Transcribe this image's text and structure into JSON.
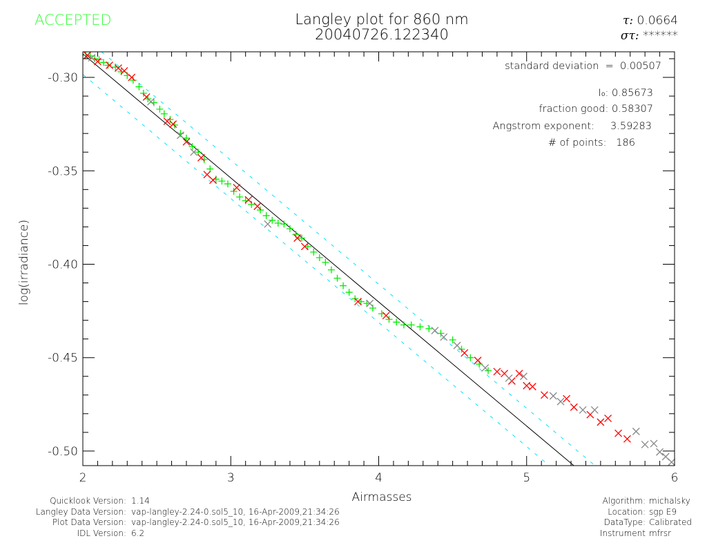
{
  "status": "ACCEPTED",
  "title": [
    "Langley plot for 860 nm",
    "20040726.122340"
  ],
  "tau": {
    "label": "τ:",
    "value": "0.0664"
  },
  "sigma_tau": {
    "label": "στ:",
    "value": "******"
  },
  "stats": {
    "std_dev": "standard deviation  =  0.00507",
    "i0": "I₀: 0.85673",
    "fraction_good": "fraction good: 0.58307",
    "angstrom": "Angstrom exponent:     3.59283",
    "n_points": "# of points:   186"
  },
  "footer_left": [
    {
      "label": "Quicklook Version:",
      "value": "1.14"
    },
    {
      "label": "Langley Data Version:",
      "value": "vap-langley-2.24-0.sol5_10, 16-Apr-2009,21:34:26"
    },
    {
      "label": "Plot Data Version:",
      "value": "vap-langley-2.24-0.sol5_10, 16-Apr-2009,21:34:26"
    },
    {
      "label": "IDL Version:",
      "value": "6.2"
    }
  ],
  "footer_right": [
    {
      "label": "Algorithm:",
      "value": "michalsky"
    },
    {
      "label": "Location:",
      "value": "sgp E9"
    },
    {
      "label": "DataType:",
      "value": "Calibrated"
    },
    {
      "label": "Instrument",
      "value": "mfrsr"
    }
  ],
  "chart_data": {
    "type": "scatter",
    "title": "Langley plot for 860 nm",
    "xlabel": "Airmasses",
    "ylabel": "log(irradiance)",
    "xlim": [
      2,
      6
    ],
    "ylim": [
      -0.5078,
      -0.2863
    ],
    "xticks": [
      "2",
      "3",
      "4",
      "5",
      "6"
    ],
    "yticks": [
      "-0.30",
      "-0.35",
      "-0.40",
      "-0.45",
      "-0.50"
    ],
    "ytick_values": [
      -0.3,
      -0.35,
      -0.4,
      -0.45,
      -0.5
    ],
    "grid": false,
    "colors": {
      "accepted": "#00ee00",
      "rejected": "#ff0000",
      "other": "#888888",
      "fit": "#000000",
      "bounds": "#00e5ff",
      "axes": "#000000"
    },
    "fit": {
      "intercept": -0.1546,
      "slope": -0.0664
    },
    "bounds_offset": [
      0.0095,
      -0.011
    ],
    "series": [
      {
        "marker": "plus",
        "color": "#00ee00",
        "points": [
          [
            2.02,
            -0.2875
          ],
          [
            2.05,
            -0.2885
          ],
          [
            2.08,
            -0.29
          ],
          [
            2.11,
            -0.2905
          ],
          [
            2.14,
            -0.292
          ],
          [
            2.17,
            -0.2935
          ],
          [
            2.22,
            -0.2945
          ],
          [
            2.26,
            -0.297
          ],
          [
            2.3,
            -0.299
          ],
          [
            2.34,
            -0.3015
          ],
          [
            2.38,
            -0.305
          ],
          [
            2.41,
            -0.3085
          ],
          [
            2.44,
            -0.3115
          ],
          [
            2.48,
            -0.3135
          ],
          [
            2.52,
            -0.317
          ],
          [
            2.55,
            -0.3195
          ],
          [
            2.59,
            -0.3225
          ],
          [
            2.62,
            -0.3255
          ],
          [
            2.66,
            -0.33
          ],
          [
            2.7,
            -0.3325
          ],
          [
            2.74,
            -0.337
          ],
          [
            2.78,
            -0.34
          ],
          [
            2.82,
            -0.344
          ],
          [
            2.86,
            -0.349
          ],
          [
            2.9,
            -0.3545
          ],
          [
            2.94,
            -0.3555
          ],
          [
            2.98,
            -0.357
          ],
          [
            3.02,
            -0.361
          ],
          [
            3.06,
            -0.364
          ],
          [
            3.1,
            -0.366
          ],
          [
            3.14,
            -0.368
          ],
          [
            3.2,
            -0.371
          ],
          [
            3.24,
            -0.374
          ],
          [
            3.28,
            -0.3765
          ],
          [
            3.32,
            -0.378
          ],
          [
            3.36,
            -0.3785
          ],
          [
            3.4,
            -0.381
          ],
          [
            3.44,
            -0.384
          ],
          [
            3.48,
            -0.386
          ],
          [
            3.52,
            -0.3905
          ],
          [
            3.56,
            -0.3935
          ],
          [
            3.6,
            -0.3965
          ],
          [
            3.64,
            -0.399
          ],
          [
            3.68,
            -0.403
          ],
          [
            3.72,
            -0.4075
          ],
          [
            3.76,
            -0.4115
          ],
          [
            3.8,
            -0.415
          ],
          [
            3.84,
            -0.4185
          ],
          [
            3.88,
            -0.42
          ],
          [
            3.92,
            -0.421
          ],
          [
            3.96,
            -0.4235
          ],
          [
            4.02,
            -0.4265
          ],
          [
            4.07,
            -0.4295
          ],
          [
            4.12,
            -0.431
          ],
          [
            4.17,
            -0.4325
          ],
          [
            4.22,
            -0.4325
          ],
          [
            4.28,
            -0.4335
          ],
          [
            4.34,
            -0.4345
          ],
          [
            4.42,
            -0.437
          ],
          [
            4.5,
            -0.4405
          ],
          [
            4.56,
            -0.4455
          ],
          [
            4.62,
            -0.45
          ],
          [
            4.68,
            -0.4535
          ],
          [
            4.74,
            -0.457
          ]
        ]
      },
      {
        "marker": "x",
        "color": "#ff0000",
        "points": [
          [
            2.03,
            -0.288
          ],
          [
            2.1,
            -0.2915
          ],
          [
            2.18,
            -0.2935
          ],
          [
            2.24,
            -0.295
          ],
          [
            2.28,
            -0.2965
          ],
          [
            2.33,
            -0.3
          ],
          [
            2.43,
            -0.3105
          ],
          [
            2.57,
            -0.3235
          ],
          [
            2.61,
            -0.325
          ],
          [
            2.7,
            -0.3345
          ],
          [
            2.8,
            -0.343
          ],
          [
            2.84,
            -0.352
          ],
          [
            2.88,
            -0.355
          ],
          [
            3.04,
            -0.359
          ],
          [
            3.12,
            -0.3655
          ],
          [
            3.18,
            -0.369
          ],
          [
            3.45,
            -0.386
          ],
          [
            3.5,
            -0.3905
          ],
          [
            3.86,
            -0.42
          ],
          [
            4.05,
            -0.4275
          ],
          [
            4.58,
            -0.4475
          ],
          [
            4.67,
            -0.4515
          ],
          [
            4.8,
            -0.4575
          ],
          [
            4.85,
            -0.4585
          ],
          [
            4.9,
            -0.4625
          ],
          [
            4.95,
            -0.4585
          ],
          [
            5.0,
            -0.465
          ],
          [
            5.04,
            -0.4655
          ],
          [
            5.12,
            -0.47
          ],
          [
            5.27,
            -0.472
          ],
          [
            5.32,
            -0.4765
          ],
          [
            5.43,
            -0.4805
          ],
          [
            5.5,
            -0.4845
          ],
          [
            5.55,
            -0.4825
          ],
          [
            5.62,
            -0.4905
          ],
          [
            5.68,
            -0.4935
          ]
        ]
      },
      {
        "marker": "x",
        "color": "#888888",
        "points": [
          [
            2.06,
            -0.2895
          ],
          [
            2.46,
            -0.313
          ],
          [
            2.66,
            -0.331
          ],
          [
            2.75,
            -0.34
          ],
          [
            3.25,
            -0.3785
          ],
          [
            3.94,
            -0.421
          ],
          [
            4.38,
            -0.4355
          ],
          [
            4.44,
            -0.439
          ],
          [
            4.53,
            -0.4435
          ],
          [
            4.72,
            -0.4555
          ],
          [
            4.88,
            -0.461
          ],
          [
            4.98,
            -0.46
          ],
          [
            5.18,
            -0.4705
          ],
          [
            5.23,
            -0.4735
          ],
          [
            5.38,
            -0.478
          ],
          [
            5.46,
            -0.478
          ],
          [
            5.74,
            -0.4895
          ],
          [
            5.8,
            -0.4965
          ],
          [
            5.86,
            -0.496
          ],
          [
            5.9,
            -0.5005
          ],
          [
            5.94,
            -0.503
          ],
          [
            5.98,
            -0.506
          ]
        ]
      }
    ]
  }
}
